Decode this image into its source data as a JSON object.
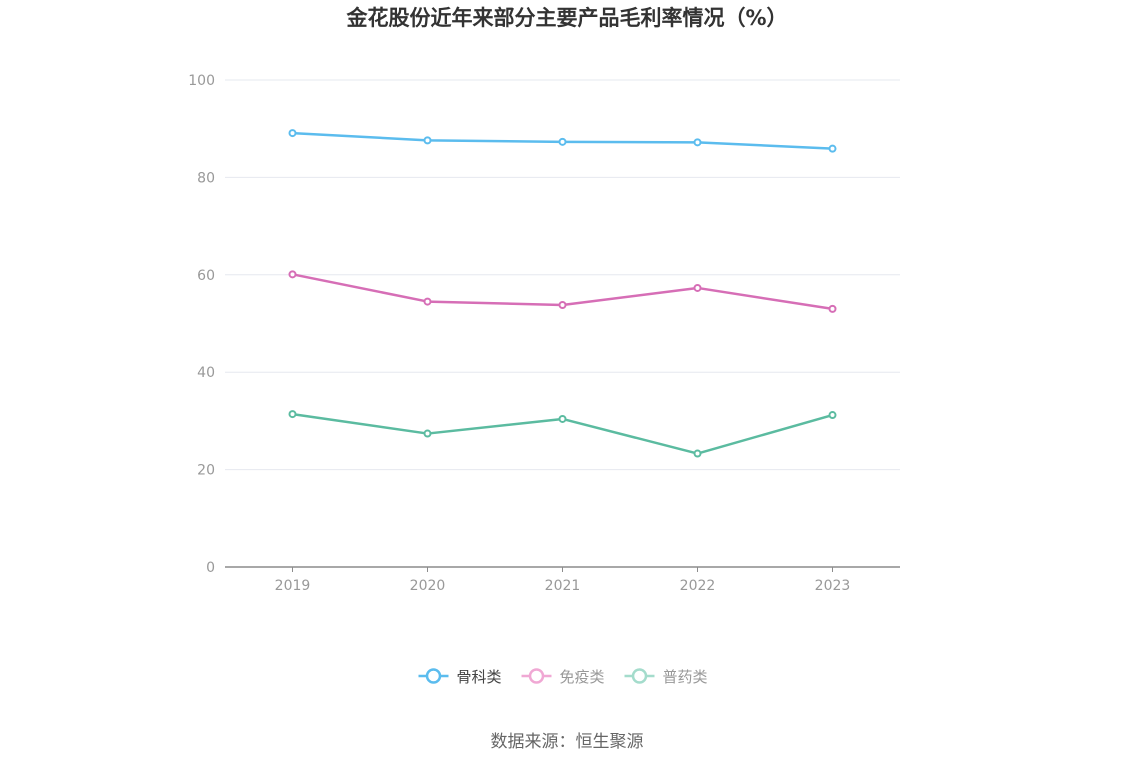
{
  "chart_data": {
    "type": "line",
    "title": "金花股份近年来部分主要产品毛利率情况（%）",
    "categories": [
      "2019",
      "2020",
      "2021",
      "2022",
      "2023"
    ],
    "ylim": [
      0,
      100
    ],
    "yticks": [
      0,
      20,
      40,
      60,
      80,
      100
    ],
    "grid": true,
    "legend_position": "bottom",
    "series": [
      {
        "name": "骨科类",
        "color": "#5bbcee",
        "values": [
          89.1,
          87.6,
          87.3,
          87.2,
          85.9
        ]
      },
      {
        "name": "免疫类",
        "color": "#d66eb6",
        "values": [
          60.1,
          54.5,
          53.8,
          57.3,
          53.0
        ]
      },
      {
        "name": "普药类",
        "color": "#5bbba0",
        "values": [
          31.4,
          27.4,
          30.4,
          23.3,
          31.2
        ]
      }
    ],
    "legend_colors": [
      "#5bbcee",
      "#f0a8d4",
      "#a4dccc"
    ],
    "legend_text_colors": [
      "#444444",
      "#999999",
      "#999999"
    ]
  },
  "source": "数据来源：恒生聚源"
}
